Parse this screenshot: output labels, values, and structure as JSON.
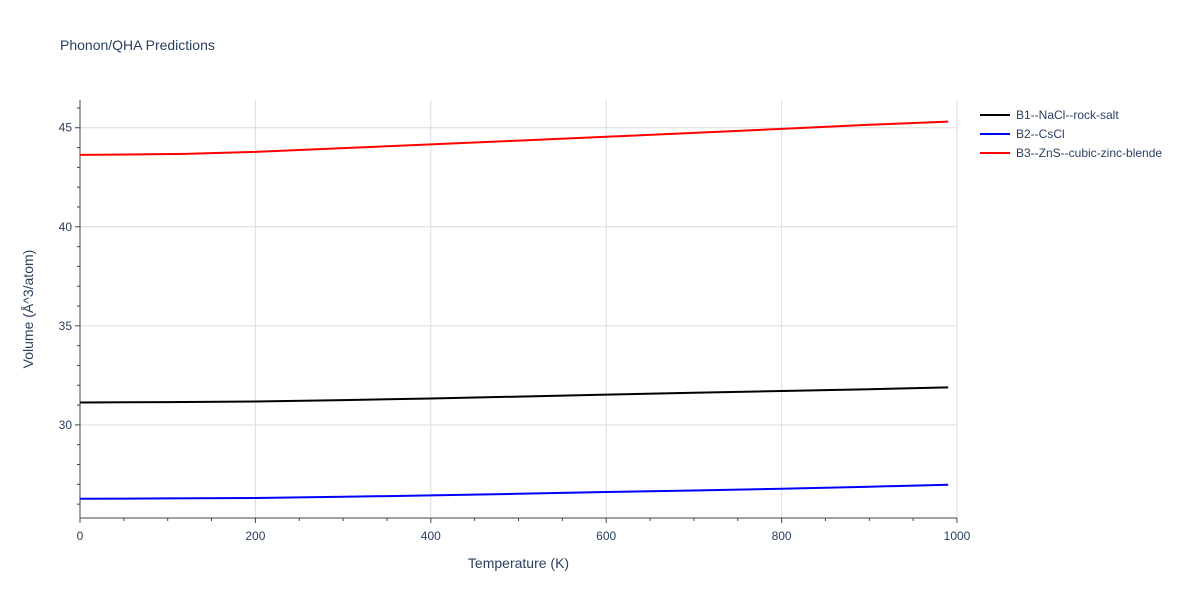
{
  "chart_data": {
    "type": "line",
    "title": "Phonon/QHA Predictions",
    "xlabel": "Temperature (K)",
    "ylabel": "Volume (Å^3/atom)",
    "xlim": [
      0,
      1000
    ],
    "ylim": [
      25.3,
      46.4
    ],
    "x_ticks": [
      0,
      200,
      400,
      600,
      800,
      1000
    ],
    "y_ticks": [
      30,
      35,
      40,
      45
    ],
    "grid": true,
    "legend_position": "top-right",
    "series": [
      {
        "name": "B1--NaCl--rock-salt",
        "color": "#000000",
        "x": [
          0,
          100,
          200,
          300,
          400,
          500,
          600,
          700,
          800,
          900,
          990
        ],
        "y": [
          31.13,
          31.15,
          31.18,
          31.25,
          31.33,
          31.43,
          31.53,
          31.62,
          31.71,
          31.8,
          31.89
        ]
      },
      {
        "name": "B2--CsCl",
        "color": "#0000ff",
        "x": [
          0,
          100,
          200,
          300,
          400,
          500,
          600,
          700,
          800,
          900,
          990
        ],
        "y": [
          26.27,
          26.29,
          26.31,
          26.37,
          26.44,
          26.52,
          26.61,
          26.69,
          26.78,
          26.88,
          26.98
        ]
      },
      {
        "name": "B3--ZnS--cubic-zinc-blende",
        "color": "#ff0000",
        "x": [
          0,
          120,
          200,
          300,
          400,
          500,
          600,
          700,
          800,
          900,
          990
        ],
        "y": [
          43.63,
          43.68,
          43.78,
          43.97,
          44.16,
          44.35,
          44.54,
          44.74,
          44.94,
          45.15,
          45.31
        ]
      }
    ]
  }
}
